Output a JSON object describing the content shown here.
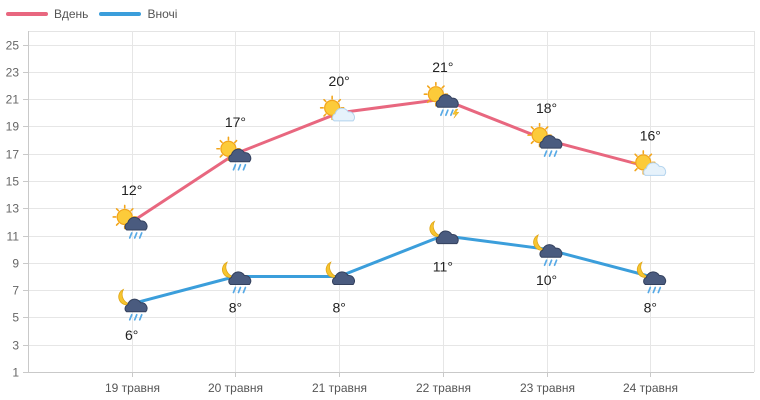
{
  "chart_data": {
    "type": "line",
    "categories": [
      "19 травня",
      "20 травня",
      "21 травня",
      "22 травня",
      "23 травня",
      "24 травня"
    ],
    "series": [
      {
        "name": "Вдень",
        "color": "#e8677f",
        "values": [
          12,
          17,
          20,
          21,
          18,
          16
        ],
        "icons": [
          "sun-cloud-rain",
          "sun-cloud-rain",
          "sun-light-cloud",
          "sun-cloud-rain-thunder",
          "sun-cloud-rain",
          "sun-light-cloud"
        ]
      },
      {
        "name": "Вночі",
        "color": "#3b9edb",
        "values": [
          6,
          8,
          8,
          11,
          10,
          8
        ],
        "icons": [
          "moon-cloud-rain",
          "moon-cloud-rain",
          "moon-cloud",
          "moon-cloud",
          "moon-cloud-rain",
          "moon-cloud-rain"
        ]
      }
    ],
    "value_suffix": "°",
    "ylim": [
      1,
      26
    ],
    "yticks": [
      1,
      3,
      5,
      7,
      9,
      11,
      13,
      15,
      17,
      19,
      21,
      23,
      25
    ],
    "grid": true,
    "legend_position": "top-left"
  }
}
